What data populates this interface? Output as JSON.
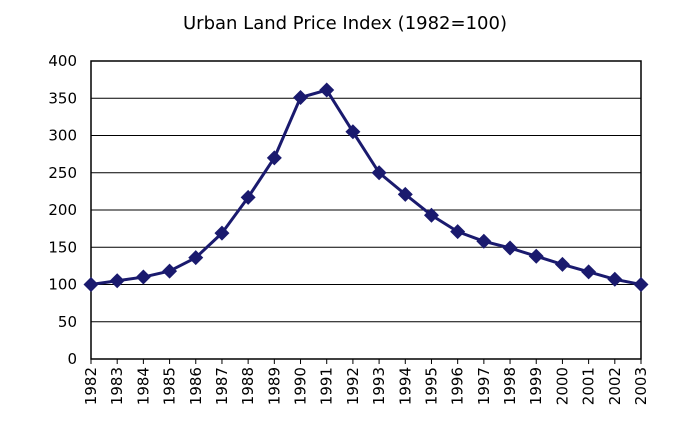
{
  "chart_data": {
    "type": "line",
    "title": "Urban Land Price Index (1982=100)",
    "xlabel": "",
    "ylabel": "",
    "categories": [
      "1982",
      "1983",
      "1984",
      "1985",
      "1986",
      "1987",
      "1988",
      "1989",
      "1990",
      "1991",
      "1992",
      "1993",
      "1994",
      "1995",
      "1996",
      "1997",
      "1998",
      "1999",
      "2000",
      "2001",
      "2002",
      "2003"
    ],
    "series": [
      {
        "name": "Urban Land Price Index",
        "values": [
          100,
          105,
          110,
          118,
          136,
          169,
          217,
          270,
          351,
          361,
          305,
          250,
          221,
          193,
          171,
          158,
          149,
          138,
          127,
          117,
          107,
          100
        ]
      }
    ],
    "ylim": [
      0,
      400
    ],
    "yticks": [
      "0",
      "50",
      "100",
      "150",
      "200",
      "250",
      "300",
      "350",
      "400"
    ],
    "grid": true,
    "legend": "none",
    "colors": {
      "line": "#1a1a6e",
      "marker": "#1a1a6e",
      "grid": "#000000"
    }
  }
}
